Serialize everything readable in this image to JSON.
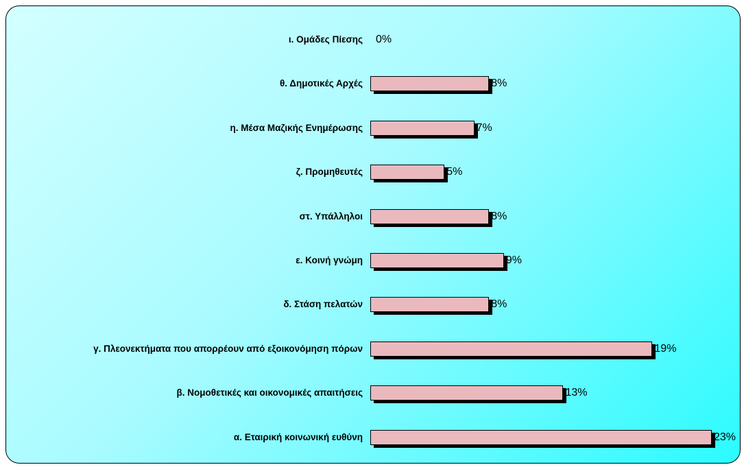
{
  "chart_data": {
    "type": "bar",
    "orientation": "horizontal",
    "categories": [
      "ι. Ομάδες Πίεσης",
      "θ. Δημοτικές Αρχές",
      "η. Μέσα Μαζικής Ενημέρωσης",
      "ζ. Προμηθευτές",
      "στ. Υπάλληλοι",
      "ε. Κοινή γνώμη",
      "δ. Στάση πελατών",
      "γ. Πλεονεκτήματα που απορρέουν από εξοικονόμηση πόρων",
      "β. Νομοθετικές και οικονομικές απαιτήσεις",
      "α. Εταιρική κοινωνική ευθύνη"
    ],
    "values": [
      0,
      8,
      7,
      5,
      8,
      9,
      8,
      19,
      13,
      23
    ],
    "value_labels": [
      "0%",
      "8%",
      "7%",
      "5%",
      "8%",
      "9%",
      "8%",
      "19%",
      "13%",
      "23%"
    ],
    "color": "#e9b9be"
  }
}
